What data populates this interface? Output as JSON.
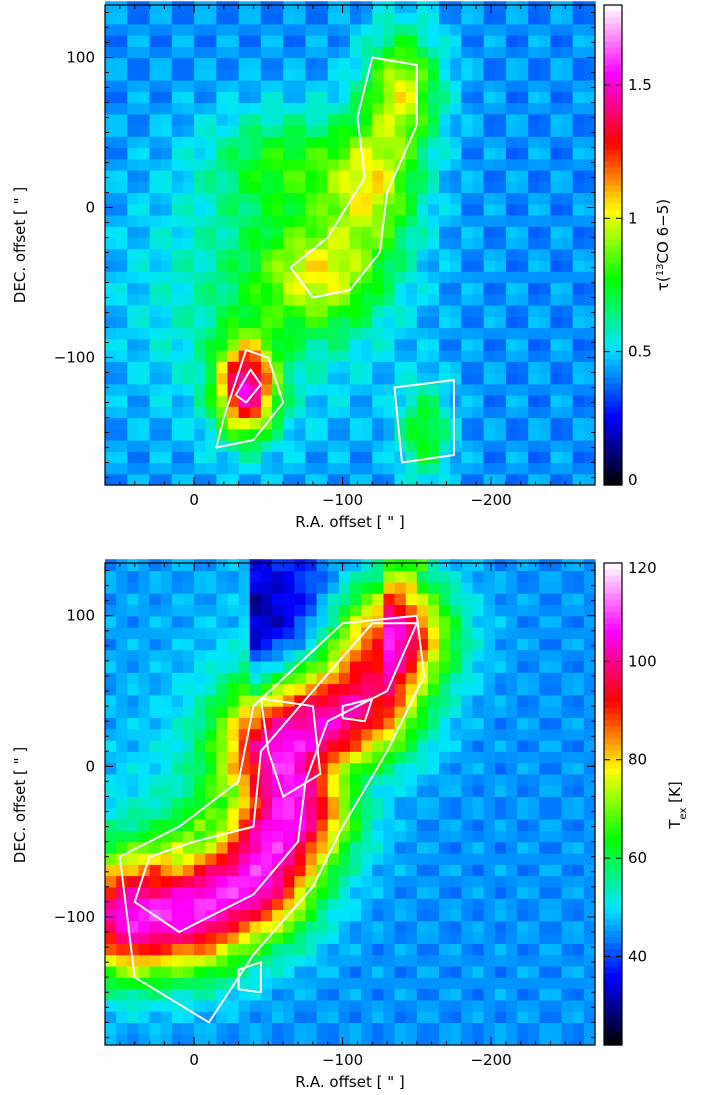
{
  "chart_data": [
    {
      "type": "heatmap",
      "xlabel": "R.A. offset [ \" ]",
      "ylabel": "DEC. offset [ \" ]",
      "xlim": [
        60,
        -270
      ],
      "ylim": [
        -185,
        135
      ],
      "xticks": [
        0,
        -100,
        -200
      ],
      "xtick_labels": [
        "0",
        "−100",
        "−200"
      ],
      "yticks": [
        100,
        0,
        -100
      ],
      "ytick_labels": [
        "100",
        "0",
        "−100"
      ],
      "colorbar": {
        "label_prefix": "τ(",
        "label_sup": "13",
        "label_rest": "CO 6−5)",
        "range": [
          0,
          1.8
        ],
        "ticks": [
          0,
          0.5,
          1,
          1.5
        ],
        "tick_labels": [
          "0",
          "0.5",
          "1",
          "1.5"
        ]
      },
      "color_scale": [
        "#000000",
        "#0000ff",
        "#00e5ff",
        "#00ff00",
        "#ffff00",
        "#ff0000",
        "#ff00ff",
        "#ffffff"
      ],
      "blobs": [
        {
          "x": -140,
          "y": 80,
          "amp": 0.55,
          "sx": 18,
          "sy": 28
        },
        {
          "x": -120,
          "y": 15,
          "amp": 0.5,
          "sx": 22,
          "sy": 30
        },
        {
          "x": -85,
          "y": -45,
          "amp": 0.45,
          "sx": 30,
          "sy": 25
        },
        {
          "x": -60,
          "y": 30,
          "amp": 0.3,
          "sx": 35,
          "sy": 25
        },
        {
          "x": -35,
          "y": -120,
          "amp": 1.0,
          "sx": 14,
          "sy": 22
        },
        {
          "x": -155,
          "y": -150,
          "amp": 0.35,
          "sx": 12,
          "sy": 22
        },
        {
          "x": -40,
          "y": -60,
          "amp": 0.2,
          "sx": 60,
          "sy": 60
        }
      ],
      "base": 0.42,
      "contours": [
        {
          "points": [
            [
              -20,
              -140
            ],
            [
              -35,
              -95
            ],
            [
              -50,
              -100
            ],
            [
              -60,
              -130
            ],
            [
              -40,
              -155
            ],
            [
              -15,
              -160
            ]
          ]
        },
        {
          "points": [
            [
              -28,
              -125
            ],
            [
              -38,
              -108
            ],
            [
              -45,
              -118
            ],
            [
              -35,
              -130
            ]
          ]
        },
        {
          "points": [
            [
              -120,
              100
            ],
            [
              -150,
              95
            ],
            [
              -150,
              55
            ],
            [
              -130,
              10
            ],
            [
              -125,
              -30
            ],
            [
              -105,
              -55
            ],
            [
              -80,
              -60
            ],
            [
              -65,
              -40
            ],
            [
              -90,
              -20
            ],
            [
              -115,
              20
            ],
            [
              -110,
              60
            ]
          ]
        },
        {
          "points": [
            [
              -135,
              -120
            ],
            [
              -175,
              -115
            ],
            [
              -175,
              -165
            ],
            [
              -140,
              -170
            ]
          ]
        }
      ]
    },
    {
      "type": "heatmap",
      "xlabel": "R.A. offset [ \" ]",
      "ylabel": "DEC. offset [ \" ]",
      "xlim": [
        60,
        -270
      ],
      "ylim": [
        -185,
        135
      ],
      "xticks": [
        0,
        -100,
        -200
      ],
      "xtick_labels": [
        "0",
        "−100",
        "−200"
      ],
      "yticks": [
        100,
        0,
        -100
      ],
      "ytick_labels": [
        "100",
        "0",
        "−100"
      ],
      "colorbar": {
        "label_main": "T",
        "label_sub": "ex",
        "label_rest": " [K]",
        "range": [
          22,
          120
        ],
        "ticks": [
          40,
          60,
          80,
          100,
          120
        ],
        "tick_labels": [
          "40",
          "60",
          "80",
          "100",
          "120"
        ]
      },
      "color_scale": [
        "#000000",
        "#0000ff",
        "#00e5ff",
        "#00ff00",
        "#ffff00",
        "#ff0000",
        "#ff00ff",
        "#ffffff"
      ],
      "ridge": [
        [
          -130,
          85
        ],
        [
          -110,
          45
        ],
        [
          -60,
          15
        ],
        [
          -65,
          -30
        ],
        [
          -40,
          -75
        ],
        [
          0,
          -95
        ],
        [
          40,
          -100
        ]
      ],
      "ridge_peak": 108,
      "ridge_width": 28,
      "background": 45,
      "contours": [
        {
          "points": [
            [
              -150,
              95
            ],
            [
              -130,
              50
            ],
            [
              -90,
              30
            ],
            [
              -75,
              -10
            ],
            [
              -70,
              -50
            ],
            [
              -40,
              -85
            ],
            [
              10,
              -110
            ],
            [
              40,
              -90
            ],
            [
              30,
              -60
            ],
            [
              0,
              -50
            ],
            [
              -40,
              -40
            ],
            [
              -45,
              10
            ],
            [
              -80,
              50
            ],
            [
              -120,
              95
            ]
          ]
        },
        {
          "points": [
            [
              -150,
              100
            ],
            [
              -155,
              60
            ],
            [
              -130,
              10
            ],
            [
              -100,
              -40
            ],
            [
              -80,
              -80
            ],
            [
              -40,
              -125
            ],
            [
              -10,
              -170
            ],
            [
              40,
              -140
            ],
            [
              50,
              -60
            ],
            [
              10,
              -40
            ],
            [
              -30,
              -10
            ],
            [
              -40,
              40
            ],
            [
              -100,
              95
            ]
          ]
        },
        {
          "points": [
            [
              -45,
              45
            ],
            [
              -80,
              40
            ],
            [
              -85,
              -5
            ],
            [
              -60,
              -20
            ],
            [
              -50,
              10
            ]
          ]
        },
        {
          "points": [
            [
              -100,
              40
            ],
            [
              -120,
              45
            ],
            [
              -115,
              30
            ],
            [
              -100,
              32
            ]
          ]
        },
        {
          "points": [
            [
              -30,
              -135
            ],
            [
              -45,
              -130
            ],
            [
              -45,
              -150
            ],
            [
              -30,
              -148
            ]
          ]
        }
      ]
    }
  ]
}
